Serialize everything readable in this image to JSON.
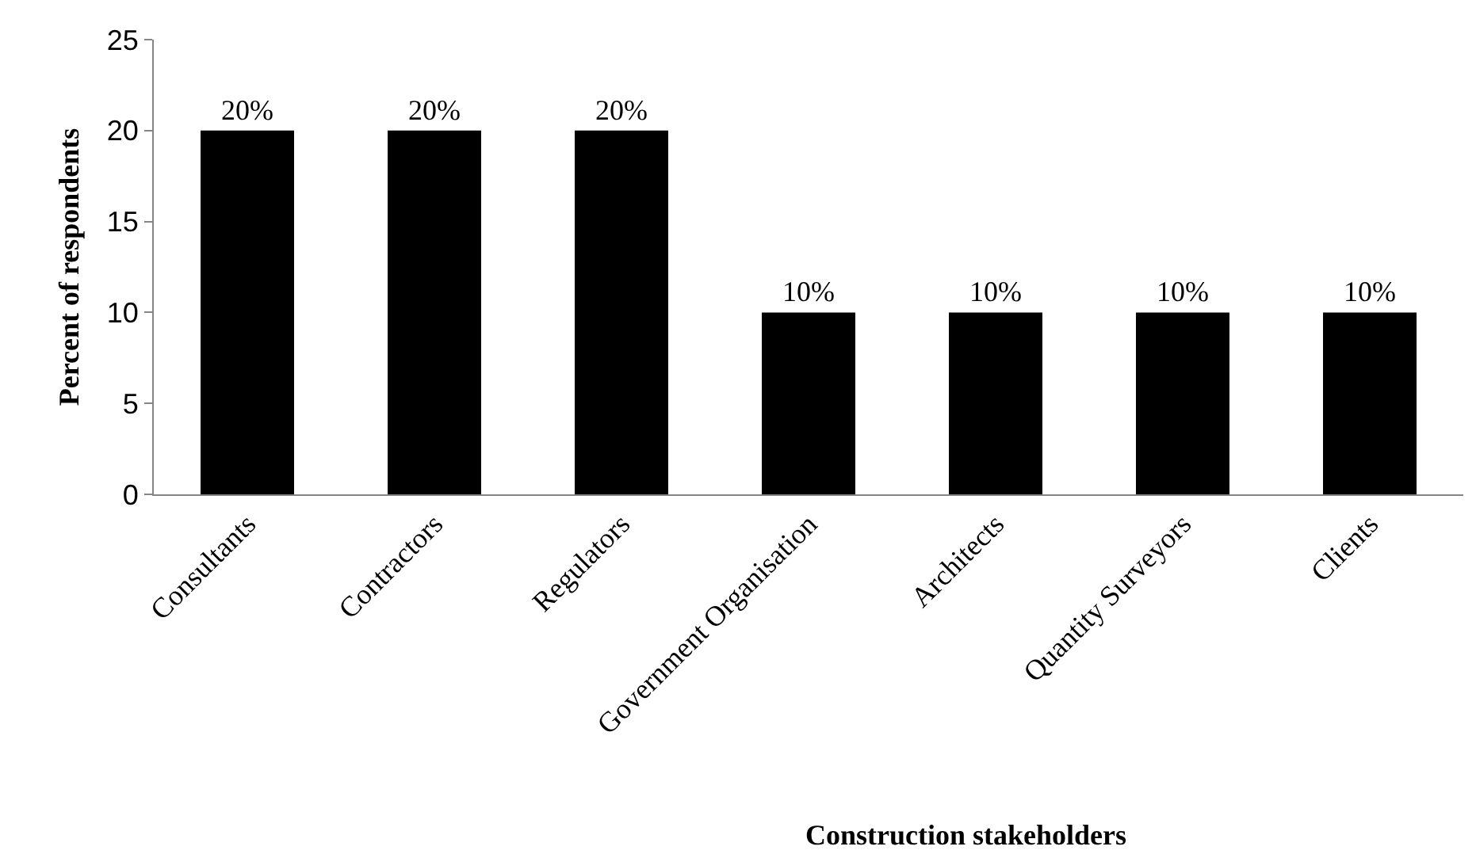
{
  "chart_data": {
    "type": "bar",
    "xlabel": "Construction stakeholders",
    "ylabel": "Percent of respondents",
    "categories": [
      "Consultants",
      "Contractors",
      "Regulators",
      "Government Organisation",
      "Architects",
      "Quantity Surveyors",
      "Clients"
    ],
    "values": [
      20,
      20,
      20,
      10,
      10,
      10,
      10
    ],
    "value_labels": [
      "20%",
      "20%",
      "20%",
      "10%",
      "10%",
      "10%",
      "10%"
    ],
    "color": "#000000",
    "ylim": [
      0,
      25
    ],
    "yticks": [
      0,
      5,
      10,
      15,
      20,
      25
    ]
  }
}
